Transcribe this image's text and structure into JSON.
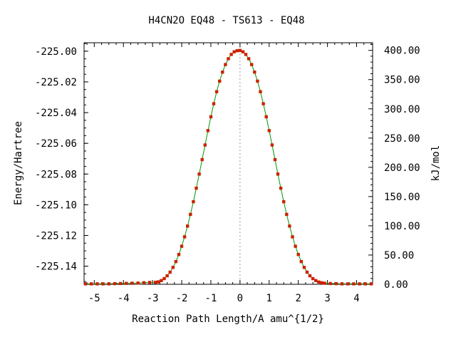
{
  "chart_data": {
    "type": "line",
    "title": "H4CN2O   EQ48 - TS613 - EQ48",
    "xlabel": "Reaction Path Length/A amu^{1/2}",
    "ylabel": "Energy/Hartree",
    "y2label": "kJ/mol",
    "xlim": [
      -5.35,
      4.55
    ],
    "ylim": [
      -225.1518,
      -224.9945
    ],
    "y2lim": [
      0,
      413
    ],
    "x_ticks": [
      "-5",
      "-4",
      "-3",
      "-2",
      "-1",
      "0",
      "1",
      "2",
      "3",
      "4"
    ],
    "y_ticks": [
      "-225.00",
      "-225.02",
      "-225.04",
      "-225.06",
      "-225.08",
      "-225.10",
      "-225.12",
      "-225.14"
    ],
    "y2_ticks": [
      "0.00",
      "50.00",
      "100.00",
      "150.00",
      "200.00",
      "250.00",
      "300.00",
      "350.00",
      "400.00"
    ],
    "ts_x": 0,
    "grid": false,
    "series": [
      {
        "color": "#009900",
        "marker_color": "#cc2200",
        "points": [
          [
            -5.3,
            -225.1515
          ],
          [
            -5.1,
            -225.1515
          ],
          [
            -4.9,
            -225.1515
          ],
          [
            -4.7,
            -225.1515
          ],
          [
            -4.5,
            -225.1515
          ],
          [
            -4.3,
            -225.1514
          ],
          [
            -4.1,
            -225.1513
          ],
          [
            -3.9,
            -225.1512
          ],
          [
            -3.7,
            -225.1511
          ],
          [
            -3.5,
            -225.151
          ],
          [
            -3.3,
            -225.1508
          ],
          [
            -3.1,
            -225.1506
          ],
          [
            -2.9,
            -225.1505
          ],
          [
            -2.8,
            -225.1502
          ],
          [
            -2.7,
            -225.1494
          ],
          [
            -2.6,
            -225.1481
          ],
          [
            -2.5,
            -225.1463
          ],
          [
            -2.4,
            -225.1439
          ],
          [
            -2.3,
            -225.1408
          ],
          [
            -2.2,
            -225.137
          ],
          [
            -2.1,
            -225.1324
          ],
          [
            -2.0,
            -225.127
          ],
          [
            -1.9,
            -225.1209
          ],
          [
            -1.8,
            -225.1139
          ],
          [
            -1.7,
            -225.1063
          ],
          [
            -1.6,
            -225.098
          ],
          [
            -1.5,
            -225.0892
          ],
          [
            -1.4,
            -225.08
          ],
          [
            -1.3,
            -225.0706
          ],
          [
            -1.2,
            -225.0611
          ],
          [
            -1.1,
            -225.0517
          ],
          [
            -1.0,
            -225.0427
          ],
          [
            -0.9,
            -225.0342
          ],
          [
            -0.8,
            -225.0264
          ],
          [
            -0.7,
            -225.0195
          ],
          [
            -0.6,
            -225.0136
          ],
          [
            -0.5,
            -225.0087
          ],
          [
            -0.4,
            -225.0049
          ],
          [
            -0.3,
            -225.0021
          ],
          [
            -0.2,
            -225.0004
          ],
          [
            -0.1,
            -224.9997
          ],
          [
            0.0,
            -224.9995
          ],
          [
            0.1,
            -225.0004
          ],
          [
            0.2,
            -225.0021
          ],
          [
            0.3,
            -225.0049
          ],
          [
            0.4,
            -225.0087
          ],
          [
            0.5,
            -225.0136
          ],
          [
            0.6,
            -225.0195
          ],
          [
            0.7,
            -225.0264
          ],
          [
            0.8,
            -225.0342
          ],
          [
            0.9,
            -225.0427
          ],
          [
            1.0,
            -225.0517
          ],
          [
            1.1,
            -225.0611
          ],
          [
            1.2,
            -225.0706
          ],
          [
            1.3,
            -225.08
          ],
          [
            1.4,
            -225.0892
          ],
          [
            1.5,
            -225.098
          ],
          [
            1.6,
            -225.1063
          ],
          [
            1.7,
            -225.1139
          ],
          [
            1.8,
            -225.1209
          ],
          [
            1.9,
            -225.127
          ],
          [
            2.0,
            -225.1324
          ],
          [
            2.1,
            -225.137
          ],
          [
            2.2,
            -225.1408
          ],
          [
            2.3,
            -225.1439
          ],
          [
            2.4,
            -225.1463
          ],
          [
            2.5,
            -225.1481
          ],
          [
            2.6,
            -225.1494
          ],
          [
            2.7,
            -225.1503
          ],
          [
            2.8,
            -225.1508
          ],
          [
            2.9,
            -225.1511
          ],
          [
            3.1,
            -225.1513
          ],
          [
            3.3,
            -225.1514
          ],
          [
            3.5,
            -225.1515
          ],
          [
            3.7,
            -225.1515
          ],
          [
            3.9,
            -225.1515
          ],
          [
            4.1,
            -225.1515
          ],
          [
            4.3,
            -225.1515
          ],
          [
            4.5,
            -225.1515
          ]
        ]
      }
    ]
  }
}
